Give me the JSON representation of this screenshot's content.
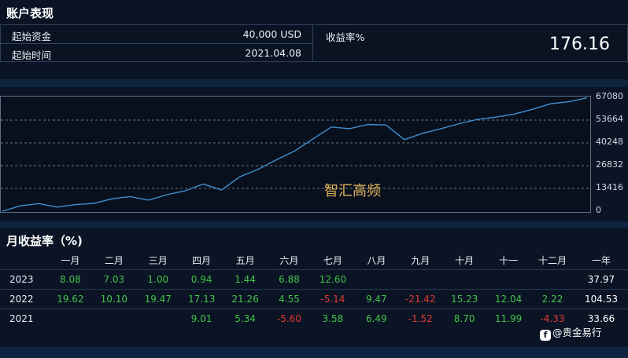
{
  "account": {
    "title": "账户表现",
    "start_funds_label": "起始资金",
    "start_funds_value": "40,000 USD",
    "start_time_label": "起始时间",
    "start_time_value": "2021.04.08",
    "return_label": "收益率%",
    "return_value": "176.16"
  },
  "chart_data": {
    "type": "line",
    "watermark": "智汇高频",
    "y_ticks": [
      "67080",
      "53664",
      "40248",
      "26832",
      "13416",
      "0"
    ],
    "ylim": [
      0,
      67080
    ],
    "grid": true,
    "line_color": "#3f8fd0",
    "x": [
      0,
      1,
      2,
      3,
      4,
      5,
      6,
      7,
      8,
      9,
      10,
      11,
      12,
      13,
      14,
      15,
      16,
      17,
      18,
      19,
      20,
      21,
      22,
      23,
      24,
      25,
      26,
      27,
      28,
      29,
      30,
      31,
      32
    ],
    "series": [
      {
        "values": [
          0,
          3200,
          4500,
          2400,
          3900,
          4600,
          7300,
          8600,
          6500,
          9700,
          12000,
          16000,
          12500,
          20300,
          24700,
          30300,
          35500,
          42600,
          49600,
          48600,
          51100,
          50800,
          42200,
          45900,
          48600,
          51600,
          54100,
          55400,
          57200,
          60000,
          63300,
          64500,
          66800
        ]
      }
    ]
  },
  "monthly": {
    "title": "月收益率（%)",
    "headers": [
      "一月",
      "二月",
      "三月",
      "四月",
      "五月",
      "六月",
      "七月",
      "八月",
      "九月",
      "十月",
      "十一",
      "十二月",
      "一年"
    ],
    "rows": [
      {
        "year": "2023",
        "cells": [
          {
            "v": "8.08",
            "s": "pos"
          },
          {
            "v": "7.03",
            "s": "pos"
          },
          {
            "v": "1.00",
            "s": "pos"
          },
          {
            "v": "0.94",
            "s": "pos"
          },
          {
            "v": "1.44",
            "s": "pos"
          },
          {
            "v": "6.88",
            "s": "pos"
          },
          {
            "v": "12.60",
            "s": "pos"
          },
          {
            "v": "",
            "s": ""
          },
          {
            "v": "",
            "s": ""
          },
          {
            "v": "",
            "s": ""
          },
          {
            "v": "",
            "s": ""
          },
          {
            "v": "",
            "s": ""
          }
        ],
        "total": "37.97"
      },
      {
        "year": "2022",
        "cells": [
          {
            "v": "19.62",
            "s": "pos"
          },
          {
            "v": "10.10",
            "s": "pos"
          },
          {
            "v": "19.47",
            "s": "pos"
          },
          {
            "v": "17.13",
            "s": "pos"
          },
          {
            "v": "21.26",
            "s": "pos"
          },
          {
            "v": "4.55",
            "s": "pos"
          },
          {
            "v": "-5.14",
            "s": "neg"
          },
          {
            "v": "9.47",
            "s": "pos"
          },
          {
            "v": "-21.42",
            "s": "neg"
          },
          {
            "v": "15.23",
            "s": "pos"
          },
          {
            "v": "12.04",
            "s": "pos"
          },
          {
            "v": "2.22",
            "s": "pos"
          }
        ],
        "total": "104.53"
      },
      {
        "year": "2021",
        "cells": [
          {
            "v": "",
            "s": ""
          },
          {
            "v": "",
            "s": ""
          },
          {
            "v": "",
            "s": ""
          },
          {
            "v": "9.01",
            "s": "pos"
          },
          {
            "v": "5.34",
            "s": "pos"
          },
          {
            "v": "-5.60",
            "s": "neg"
          },
          {
            "v": "3.58",
            "s": "pos"
          },
          {
            "v": "6.49",
            "s": "pos"
          },
          {
            "v": "-1.52",
            "s": "neg"
          },
          {
            "v": "8.70",
            "s": "pos"
          },
          {
            "v": "11.99",
            "s": "pos"
          },
          {
            "v": "-4.33",
            "s": "neg"
          }
        ],
        "total": "33.66"
      }
    ]
  },
  "credit": {
    "icon": "weibo-icon",
    "text": "@贵金易行"
  }
}
